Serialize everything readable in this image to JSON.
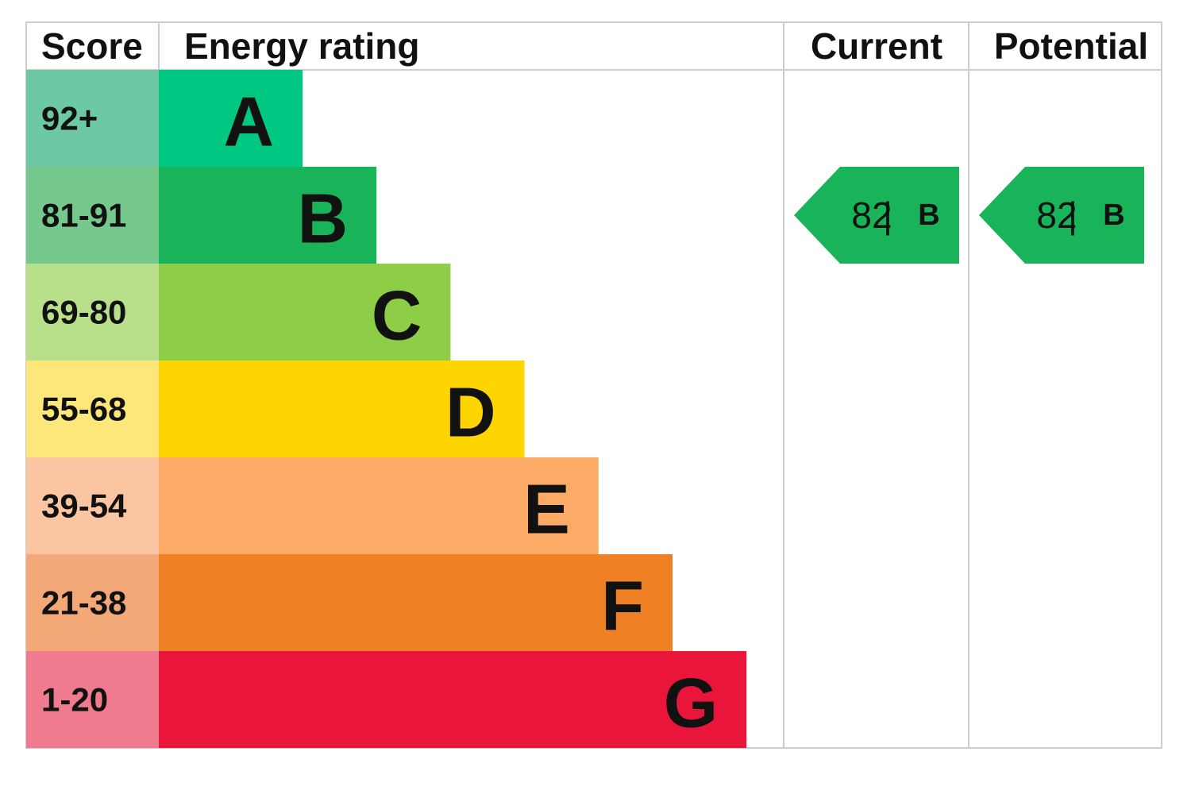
{
  "header": {
    "score": "Score",
    "energy_rating": "Energy rating",
    "current": "Current",
    "potential": "Potential"
  },
  "bands": [
    {
      "score": "92+",
      "rating": "A",
      "color": "#00c781",
      "score_color": "#6cc9a3"
    },
    {
      "score": "81-91",
      "rating": "B",
      "color": "#19b459",
      "score_color": "#76c98d"
    },
    {
      "score": "69-80",
      "rating": "C",
      "color": "#8dce46",
      "score_color": "#b8e08a"
    },
    {
      "score": "55-68",
      "rating": "D",
      "color": "#ffd500",
      "score_color": "#fde77a"
    },
    {
      "score": "39-54",
      "rating": "E",
      "color": "#fcaa65",
      "score_color": "#fac5a0"
    },
    {
      "score": "21-38",
      "rating": "F",
      "color": "#ef8023",
      "score_color": "#f2a877"
    },
    {
      "score": "1-20",
      "rating": "G",
      "color": "#e9153b",
      "score_color": "#f07a8e"
    }
  ],
  "current": {
    "score": 82,
    "separator": "|",
    "rating": "B",
    "color": "#19b459"
  },
  "potential": {
    "score": 82,
    "separator": "|",
    "rating": "B",
    "color": "#19b459"
  }
}
